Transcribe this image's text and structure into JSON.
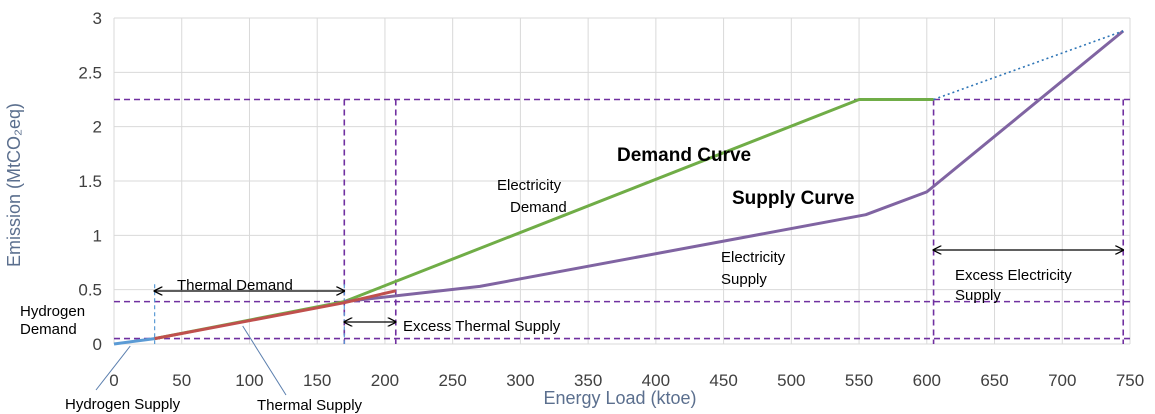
{
  "chart_data": {
    "type": "line",
    "title": "",
    "xlabel": "Energy Load (ktoe)",
    "ylabel": "Emission (MtCO₂eq)",
    "xlim": [
      0,
      750
    ],
    "ylim": [
      0,
      3
    ],
    "x_ticks": [
      0,
      50,
      100,
      150,
      200,
      250,
      300,
      350,
      400,
      450,
      500,
      550,
      600,
      650,
      700,
      750
    ],
    "y_ticks": [
      0,
      0.5,
      1,
      1.5,
      2,
      2.5,
      3
    ],
    "x_tick_labels": [
      "0",
      "50",
      "100",
      "150",
      "200",
      "250",
      "300",
      "350",
      "400",
      "450",
      "500",
      "550",
      "600",
      "650",
      "700",
      "750"
    ],
    "y_tick_labels": [
      "0",
      "0.5",
      "1",
      "1.5",
      "2",
      "2.5",
      "3"
    ],
    "grid": true,
    "series": [
      {
        "name": "",
        "color": "#70ad47",
        "style": "solid",
        "x": [
          30,
          170,
          550,
          605
        ],
        "y": [
          0.05,
          0.39,
          2.25,
          2.25
        ]
      },
      {
        "name": "",
        "color": "#8064a2",
        "style": "solid",
        "x": [
          170,
          270,
          555,
          600,
          745
        ],
        "y": [
          0.39,
          0.53,
          1.19,
          1.4,
          2.88
        ]
      },
      {
        "name": "",
        "color": "#c0504d",
        "style": "solid",
        "x": [
          30,
          170,
          208
        ],
        "y": [
          0.05,
          0.38,
          0.49
        ]
      },
      {
        "name": "",
        "color": "#5b9bd5",
        "style": "solid",
        "x": [
          0,
          30
        ],
        "y": [
          0.0,
          0.05
        ]
      },
      {
        "name": "",
        "color": "#2e75b6",
        "style": "dotted",
        "x": [
          605,
          745
        ],
        "y": [
          2.25,
          2.88
        ]
      }
    ],
    "reference_lines": {
      "horizontal_y": [
        2.25,
        0.39,
        0.05
      ],
      "vertical_x": [
        170,
        208,
        605,
        745
      ],
      "vertical_blue_x": [
        30,
        170
      ],
      "color": "#7030a0"
    },
    "annotations": {
      "demand_curve": "Demand Curve",
      "supply_curve": "Supply Curve",
      "electricity_demand_1": "Electricity",
      "electricity_demand_2": "Demand",
      "electricity_supply_1": "Electricity",
      "electricity_supply_2": "Supply",
      "thermal_demand": "Thermal Demand",
      "excess_thermal_supply": "Excess Thermal Supply",
      "excess_electricity_supply_1": "Excess Electricity",
      "excess_electricity_supply_2": "Supply",
      "hydrogen_demand_1": "Hydrogen",
      "hydrogen_demand_2": "Demand",
      "hydrogen_supply": "Hydrogen Supply",
      "thermal_supply": "Thermal Supply"
    }
  }
}
